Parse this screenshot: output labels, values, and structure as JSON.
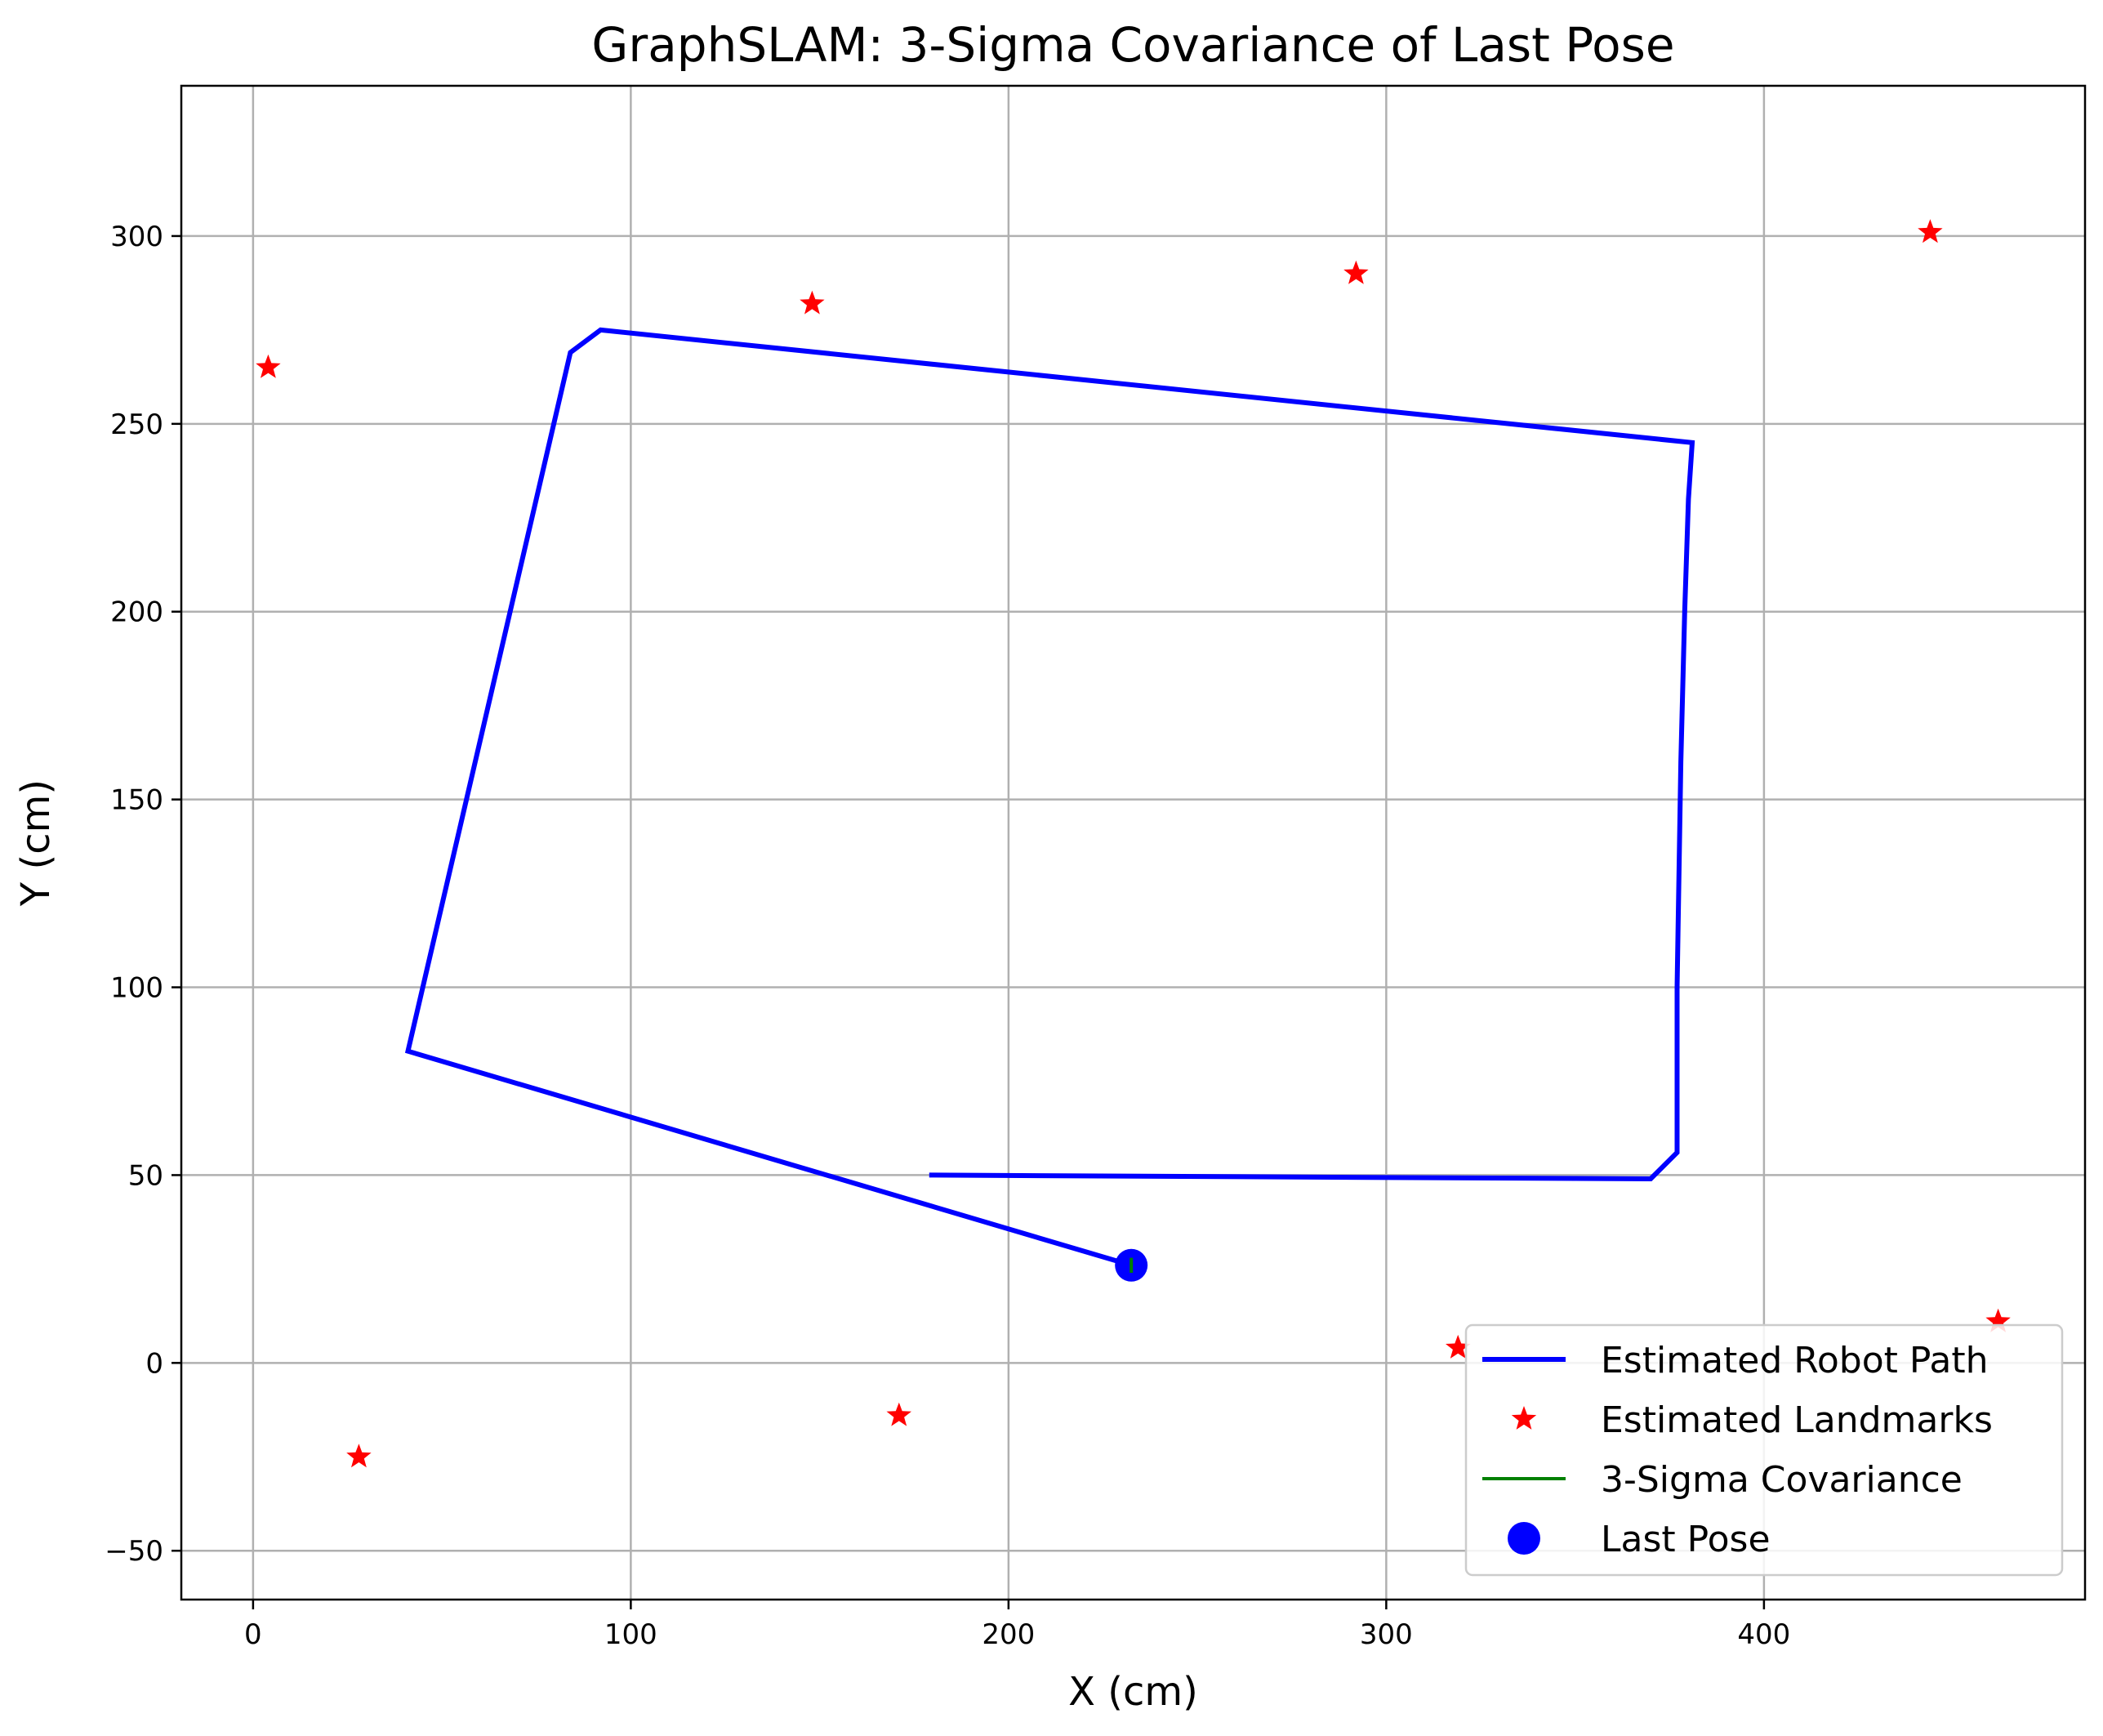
{
  "chart_data": {
    "type": "line",
    "title": "GraphSLAM: 3-Sigma Covariance of Last Pose",
    "xlabel": "X (cm)",
    "ylabel": "Y (cm)",
    "xlim": [
      -19,
      485
    ],
    "ylim": [
      -63,
      340
    ],
    "xticks": [
      0,
      100,
      200,
      300,
      400
    ],
    "yticks": [
      -50,
      0,
      50,
      100,
      150,
      200,
      250,
      300
    ],
    "grid": true,
    "legend_position": "lower-right",
    "colors": {
      "path": "#0000ff",
      "landmark": "#ff0000",
      "covariance": "#008000",
      "last_pose": "#0000ff",
      "grid": "#b0b0b0"
    },
    "series": [
      {
        "name": "Estimated Robot Path",
        "kind": "line",
        "x": [
          179,
          370,
          377,
          377,
          378,
          379,
          380,
          381,
          92,
          84,
          41,
          232.5
        ],
        "y": [
          50,
          49,
          56,
          100,
          160,
          200,
          230,
          245,
          275,
          269,
          83,
          26
        ]
      },
      {
        "name": "Estimated Landmarks",
        "kind": "scatter",
        "x": [
          4,
          148,
          292,
          444,
          28,
          171,
          319,
          462
        ],
        "y": [
          265,
          282,
          290,
          301,
          -25,
          -14,
          4,
          11
        ]
      },
      {
        "name": "3-Sigma Covariance",
        "kind": "line",
        "x": [
          232.5,
          232.5
        ],
        "y": [
          24,
          28
        ]
      },
      {
        "name": "Last Pose",
        "kind": "scatter",
        "x": [
          232.5
        ],
        "y": [
          26
        ]
      }
    ]
  }
}
